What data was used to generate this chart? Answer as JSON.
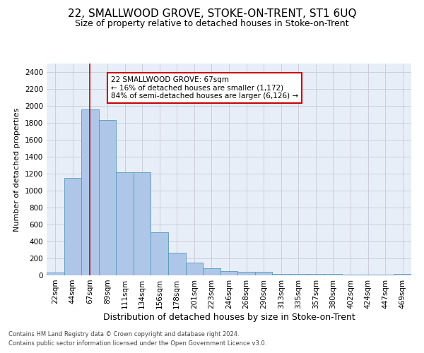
{
  "title": "22, SMALLWOOD GROVE, STOKE-ON-TRENT, ST1 6UQ",
  "subtitle": "Size of property relative to detached houses in Stoke-on-Trent",
  "xlabel": "Distribution of detached houses by size in Stoke-on-Trent",
  "ylabel": "Number of detached properties",
  "categories": [
    "22sqm",
    "44sqm",
    "67sqm",
    "89sqm",
    "111sqm",
    "134sqm",
    "156sqm",
    "178sqm",
    "201sqm",
    "223sqm",
    "246sqm",
    "268sqm",
    "290sqm",
    "313sqm",
    "335sqm",
    "357sqm",
    "380sqm",
    "402sqm",
    "424sqm",
    "447sqm",
    "469sqm"
  ],
  "values": [
    30,
    1150,
    1960,
    1830,
    1220,
    1220,
    510,
    265,
    150,
    80,
    50,
    45,
    40,
    20,
    20,
    15,
    15,
    5,
    5,
    5,
    20
  ],
  "bar_color": "#aec6e8",
  "bar_edge_color": "#5599bb",
  "vline_x_idx": 2,
  "vline_color": "#cc0000",
  "annotation_text": "22 SMALLWOOD GROVE: 67sqm\n← 16% of detached houses are smaller (1,172)\n84% of semi-detached houses are larger (6,126) →",
  "annotation_box_color": "#ffffff",
  "annotation_box_edge": "#cc0000",
  "footnote1": "Contains HM Land Registry data © Crown copyright and database right 2024.",
  "footnote2": "Contains public sector information licensed under the Open Government Licence v3.0.",
  "bg_color": "#ffffff",
  "ax_bg_color": "#e8eef8",
  "grid_color": "#c8c8d8",
  "ylim": [
    0,
    2500
  ],
  "yticks": [
    0,
    200,
    400,
    600,
    800,
    1000,
    1200,
    1400,
    1600,
    1800,
    2000,
    2200,
    2400
  ],
  "title_fontsize": 11,
  "subtitle_fontsize": 9,
  "xlabel_fontsize": 9,
  "ylabel_fontsize": 8,
  "tick_fontsize": 7.5,
  "annotation_fontsize": 7.5,
  "footnote_fontsize": 6
}
